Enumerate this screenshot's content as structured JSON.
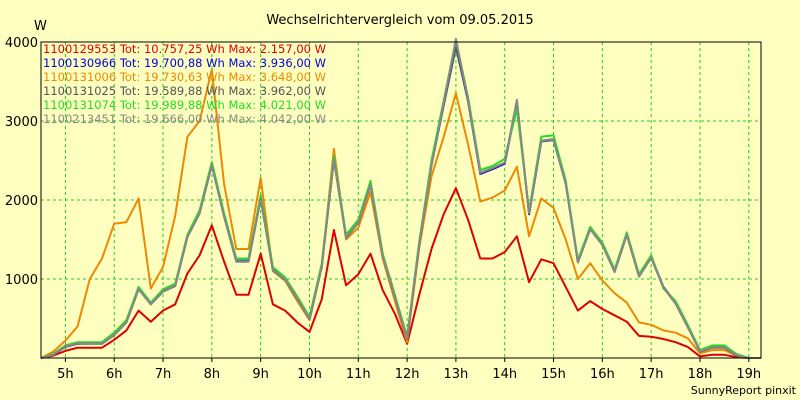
{
  "chart_data": {
    "type": "line",
    "title": "Wechselrichtervergleich vom 09.05.2015",
    "ylabel": "W",
    "xlabel": "",
    "footer": "SunnyReport pinxit",
    "ylim": [
      0,
      4000
    ],
    "xlim": [
      4.5,
      19.25
    ],
    "yticks": [
      1000,
      2000,
      3000,
      4000
    ],
    "xticks": [
      5,
      6,
      7,
      8,
      9,
      10,
      11,
      12,
      13,
      14,
      15,
      16,
      17,
      18,
      19
    ],
    "xtick_labels": [
      "5h",
      "6h",
      "7h",
      "8h",
      "9h",
      "10h",
      "11h",
      "12h",
      "13h",
      "14h",
      "15h",
      "16h",
      "17h",
      "18h",
      "19h"
    ],
    "grid": true,
    "legend_position": "top-left",
    "x": [
      4.5,
      4.75,
      5.0,
      5.25,
      5.5,
      5.75,
      6.0,
      6.25,
      6.5,
      6.75,
      7.0,
      7.25,
      7.5,
      7.75,
      8.0,
      8.25,
      8.5,
      8.75,
      9.0,
      9.25,
      9.5,
      9.75,
      10.0,
      10.25,
      10.5,
      10.75,
      11.0,
      11.25,
      11.5,
      11.75,
      12.0,
      12.25,
      12.5,
      12.75,
      13.0,
      13.25,
      13.5,
      13.75,
      14.0,
      14.25,
      14.5,
      14.75,
      15.0,
      15.25,
      15.5,
      15.75,
      16.0,
      16.25,
      16.5,
      16.75,
      17.0,
      17.25,
      17.5,
      17.75,
      18.0,
      18.25,
      18.5,
      18.75,
      19.0,
      19.25
    ],
    "series": [
      {
        "name": "1100129553",
        "legend": "1100129553 Tot: 10.757,25 Wh Max: 2.157,00 W",
        "color": "#dd0000",
        "values": [
          0,
          30,
          90,
          130,
          130,
          130,
          230,
          350,
          600,
          460,
          600,
          680,
          1070,
          1300,
          1680,
          1220,
          800,
          800,
          1320,
          680,
          600,
          450,
          330,
          740,
          1620,
          920,
          1060,
          1320,
          860,
          560,
          180,
          800,
          1380,
          1820,
          2150,
          1750,
          1260,
          1260,
          1340,
          1540,
          960,
          1250,
          1200,
          900,
          600,
          720,
          620,
          540,
          460,
          280,
          270,
          240,
          200,
          140,
          20,
          40,
          40,
          10,
          0,
          0
        ]
      },
      {
        "name": "1100130966",
        "legend": "1100130966 Tot: 19.700,88 Wh Max: 3.936,00 W",
        "color": "#0000dd",
        "values": [
          0,
          40,
          150,
          180,
          190,
          190,
          300,
          460,
          880,
          690,
          850,
          920,
          1540,
          1840,
          2450,
          1800,
          1230,
          1230,
          2020,
          1120,
          1000,
          760,
          500,
          1160,
          2520,
          1530,
          1720,
          2200,
          1300,
          780,
          250,
          1450,
          2450,
          3200,
          3940,
          3250,
          2330,
          2390,
          2460,
          3230,
          1820,
          2740,
          2760,
          2210,
          1220,
          1640,
          1440,
          1100,
          1570,
          1040,
          1280,
          900,
          700,
          400,
          90,
          140,
          140,
          40,
          0,
          0
        ]
      },
      {
        "name": "1100131006",
        "legend": "1100131006 Tot: 19.730,63 Wh Max: 3.648,00 W",
        "color": "#ee8800",
        "values": [
          0,
          80,
          220,
          400,
          1000,
          1260,
          1700,
          1720,
          2020,
          880,
          1150,
          1800,
          2800,
          3000,
          3650,
          2200,
          1380,
          1380,
          2280,
          1100,
          980,
          720,
          480,
          1150,
          2650,
          1500,
          1650,
          2100,
          1260,
          720,
          200,
          1400,
          2300,
          2800,
          3350,
          2700,
          1980,
          2030,
          2120,
          2420,
          1540,
          2020,
          1900,
          1500,
          1000,
          1200,
          980,
          820,
          700,
          450,
          420,
          350,
          320,
          250,
          60,
          100,
          100,
          30,
          0,
          0
        ]
      },
      {
        "name": "1100131025",
        "legend": "1100131025 Tot: 19.589,88 Wh Max: 3.962,00 W",
        "color": "#555555",
        "values": [
          0,
          40,
          140,
          180,
          180,
          180,
          290,
          450,
          870,
          680,
          840,
          910,
          1530,
          1830,
          2440,
          1790,
          1220,
          1220,
          2010,
          1110,
          990,
          750,
          490,
          1150,
          2510,
          1520,
          1710,
          2190,
          1290,
          770,
          240,
          1440,
          2440,
          3210,
          3960,
          3260,
          2340,
          2400,
          2470,
          3240,
          1830,
          2750,
          2770,
          2220,
          1210,
          1630,
          1430,
          1090,
          1560,
          1030,
          1270,
          890,
          690,
          390,
          80,
          130,
          130,
          30,
          0,
          0
        ]
      },
      {
        "name": "1100131074",
        "legend": "1100131074 Tot: 19.989,88 Wh Max: 4.021,00 W",
        "color": "#22dd22",
        "values": [
          0,
          50,
          160,
          200,
          200,
          200,
          320,
          480,
          900,
          700,
          870,
          940,
          1560,
          1870,
          2480,
          1830,
          1260,
          1260,
          2060,
          1150,
          1020,
          780,
          520,
          1190,
          2560,
          1560,
          1750,
          2240,
          1320,
          800,
          270,
          1480,
          2500,
          3260,
          4020,
          3300,
          2380,
          2430,
          2520,
          3150,
          1860,
          2800,
          2820,
          2250,
          1240,
          1660,
          1460,
          1120,
          1590,
          1060,
          1300,
          880,
          720,
          420,
          100,
          160,
          160,
          50,
          0,
          0
        ]
      },
      {
        "name": "1100213451",
        "legend": "1100213451 Tot: 19.666,00 Wh Max: 4.042,00 W",
        "color": "#888888",
        "values": [
          0,
          40,
          150,
          185,
          185,
          185,
          295,
          455,
          875,
          685,
          845,
          915,
          1535,
          1835,
          2445,
          1795,
          1225,
          1225,
          2015,
          1115,
          995,
          755,
          495,
          1155,
          2515,
          1525,
          1715,
          2195,
          1295,
          775,
          245,
          1445,
          2445,
          3230,
          4040,
          3270,
          2345,
          2405,
          2475,
          3270,
          1835,
          2745,
          2765,
          2215,
          1215,
          1635,
          1435,
          1095,
          1565,
          1035,
          1275,
          895,
          695,
          395,
          85,
          135,
          135,
          35,
          0,
          0
        ]
      }
    ]
  }
}
